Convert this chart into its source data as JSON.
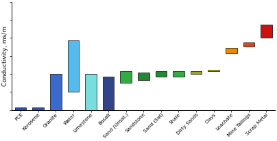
{
  "materials": [
    "PCE",
    "Kerosene",
    "Granite",
    "Water",
    "Limestone",
    "Basalt",
    "Sand (Unsat.)",
    "Sandstone",
    "Sand (Sat)",
    "Shale",
    "Dirty Sands",
    "Clays",
    "Leachate",
    "Mine Tailings",
    "Scrap Metal"
  ],
  "low": [
    0.0001,
    0.0001,
    0.0001,
    0.01,
    0.0001,
    0.0001,
    0.1,
    0.2,
    0.5,
    0.5,
    1.0,
    2.0,
    200.0,
    1000.0,
    10000.0
  ],
  "high": [
    0.0002,
    0.0002,
    1.0,
    5000.0,
    1.0,
    0.5,
    2.0,
    1.5,
    2.0,
    2.0,
    2.0,
    3.0,
    800.0,
    3000.0,
    300000.0
  ],
  "colors": [
    "#2a50a0",
    "#2a50a0",
    "#3a6acc",
    "#55bbee",
    "#77dddd",
    "#334488",
    "#33aa44",
    "#228833",
    "#228833",
    "#33aa44",
    "#99aa22",
    "#ddcc00",
    "#ee8800",
    "#dd4422",
    "#cc1111"
  ],
  "ylabel": "Conductivity, ms/m",
  "ylim_low": 0.0001,
  "ylim_high": 100000000.0,
  "figwidth": 4.04,
  "figheight": 2.06,
  "dpi": 100
}
